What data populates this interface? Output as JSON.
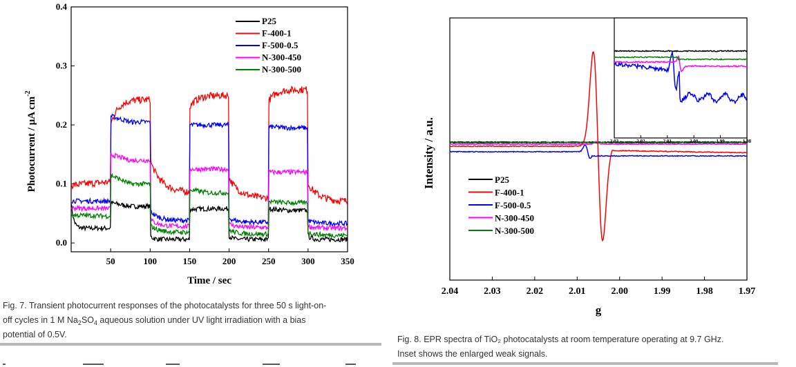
{
  "figures": {
    "fig7": {
      "caption_lines": [
        "Fig. 7. Transient photocurrent responses of the photocatalysts for three 50 s light-on-",
        "off cycles in 1 M Na₂SO₄ aqueous solution under UV light irradiation with a bias",
        "potential of 0.5V."
      ]
    },
    "fig8": {
      "caption_lines": [
        "Fig. 8. EPR spectra of TiO₂ photocatalysts at room temperature operating at 9.7 GHz.",
        "Inset shows the enlarged weak signals."
      ]
    }
  },
  "colors": {
    "P25": "#000000",
    "F-400-1": "#ff0000",
    "F-500-0.5": "#0000ff",
    "N-300-450": "#ff00ff",
    "N-300-500": "#008000"
  },
  "chart_data": [
    {
      "type": "line",
      "xlabel": "Time / sec",
      "ylabel": "Photocurrent / µA cm⁻²",
      "xlim": [
        0,
        350
      ],
      "ylim": [
        -0.015,
        0.4
      ],
      "xticks": [
        50,
        100,
        150,
        200,
        250,
        300,
        350
      ],
      "yticks": [
        0.0,
        0.1,
        0.2,
        0.3,
        0.4
      ],
      "ytick_labels": [
        "0.0",
        "0.1",
        "0.2",
        "0.3",
        "0.4"
      ],
      "light_on_intervals": [
        [
          50,
          100
        ],
        [
          150,
          200
        ],
        [
          250,
          300
        ]
      ],
      "legend_position": "top-right",
      "series": [
        {
          "name": "P25",
          "color": "#000000",
          "on": [
            0.068,
            0.062,
            0.062,
            0.057,
            0.058,
            0.057,
            0.058,
            0.055
          ],
          "dark": [
            0.012,
            0.008,
            0.006,
            0.005,
            0.004
          ],
          "start": 0.07
        },
        {
          "name": "F-400-1",
          "color": "#ff0000",
          "on": [
            0.21,
            0.24,
            0.24,
            0.24,
            0.25,
            0.24,
            0.26,
            0.255
          ],
          "dark": [
            0.14,
            0.1,
            0.085,
            0.075,
            0.07
          ],
          "start": 0.04
        },
        {
          "name": "F-500-0.5",
          "color": "#0000ff",
          "on": [
            0.215,
            0.205,
            0.2,
            0.2,
            0.2,
            0.197,
            0.197,
            0.195
          ],
          "dark": [
            0.055,
            0.042,
            0.038,
            0.035,
            0.033
          ],
          "start": 0.035
        },
        {
          "name": "N-300-450",
          "color": "#ff00ff",
          "on": [
            0.15,
            0.14,
            0.13,
            0.125,
            0.125,
            0.12,
            0.12,
            0.12
          ],
          "dark": [
            0.04,
            0.032,
            0.028,
            0.026,
            0.025
          ],
          "start": 0.03
        },
        {
          "name": "N-300-500",
          "color": "#008000",
          "on": [
            0.115,
            0.1,
            0.095,
            0.09,
            0.085,
            0.075,
            0.07,
            0.068
          ],
          "dark": [
            0.03,
            0.022,
            0.018,
            0.015,
            0.013
          ],
          "start": 0.025
        }
      ]
    },
    {
      "type": "line",
      "xlabel": "g",
      "ylabel": "Intensity / a.u.",
      "xlim": [
        2.04,
        1.97
      ],
      "x_reversed": true,
      "xticks": [
        2.04,
        2.03,
        2.02,
        2.01,
        2.0,
        1.99,
        1.98,
        1.97
      ],
      "xtick_labels": [
        "2.04",
        "2.03",
        "2.02",
        "2.01",
        "2.00",
        "1.99",
        "1.98",
        "1.97"
      ],
      "legend_position": "center-left",
      "series": [
        {
          "name": "P25",
          "color": "#000000"
        },
        {
          "name": "F-400-1",
          "color": "#ff0000",
          "feature": "strong derivative signal, maximum near g=2.006, minimum near g=2.004"
        },
        {
          "name": "F-500-0.5",
          "color": "#0000ff",
          "feature": "weak signal near g=2.008"
        },
        {
          "name": "N-300-450",
          "color": "#ff00ff"
        },
        {
          "name": "N-300-500",
          "color": "#008000"
        }
      ],
      "inset": {
        "xlim": [
          2.03,
          1.98
        ],
        "xticks": [
          2.03,
          2.02,
          2.01,
          2.0,
          1.99,
          1.98
        ],
        "xtick_labels": [
          "2.03",
          "2.02",
          "2.01",
          "2.00",
          "1.99",
          "1.98"
        ]
      }
    }
  ]
}
